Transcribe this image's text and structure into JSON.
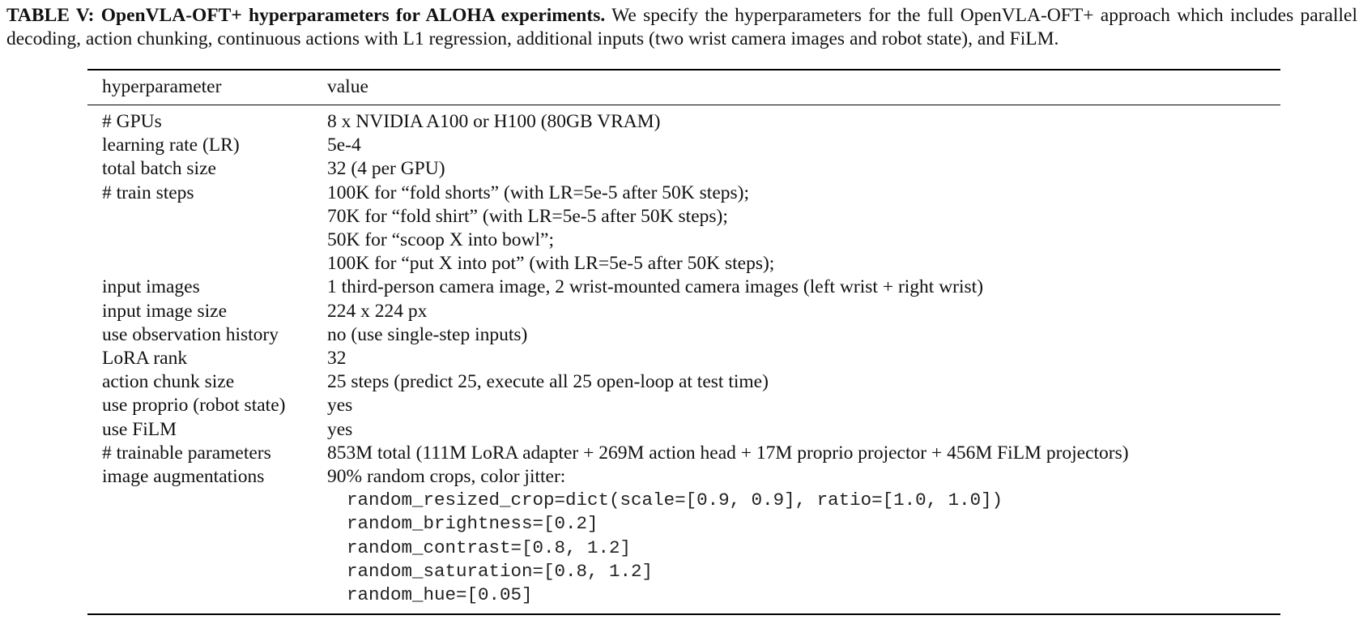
{
  "caption": {
    "label": "TABLE V: OpenVLA-OFT+ hyperparameters for ALOHA experiments.",
    "text": " We specify the hyperparameters for the full OpenVLA-OFT+ approach which includes parallel decoding, action chunking, continuous actions with L1 regression, additional inputs (two wrist camera images and robot state), and FiLM."
  },
  "table": {
    "headers": {
      "param": "hyperparameter",
      "value": "value"
    },
    "rows": [
      {
        "param": "# GPUs",
        "values": [
          "8 x NVIDIA A100 or H100 (80GB VRAM)"
        ]
      },
      {
        "param": "learning rate (LR)",
        "values": [
          "5e-4"
        ]
      },
      {
        "param": "total batch size",
        "values": [
          "32 (4 per GPU)"
        ]
      },
      {
        "param": "# train steps",
        "values": [
          "100K for “fold shorts” (with LR=5e-5 after 50K steps);",
          "70K for “fold shirt” (with LR=5e-5 after 50K steps);",
          "50K for “scoop X into bowl”;",
          "100K for “put X into pot” (with LR=5e-5 after 50K steps);"
        ]
      },
      {
        "param": "input images",
        "values": [
          "1 third-person camera image, 2 wrist-mounted camera images (left wrist + right wrist)"
        ]
      },
      {
        "param": "input image size",
        "values": [
          "224 x 224 px"
        ]
      },
      {
        "param": "use observation history",
        "values": [
          "no (use single-step inputs)"
        ]
      },
      {
        "param": "LoRA rank",
        "values": [
          "32"
        ]
      },
      {
        "param": "action chunk size",
        "values": [
          "25 steps (predict 25, execute all 25 open-loop at test time)"
        ]
      },
      {
        "param": "use proprio (robot state)",
        "values": [
          "yes"
        ]
      },
      {
        "param": "use FiLM",
        "values": [
          "yes"
        ]
      },
      {
        "param": "# trainable parameters",
        "values": [
          "853M total (111M LoRA adapter + 269M action head + 17M proprio projector + 456M FiLM projectors)"
        ]
      },
      {
        "param": "image augmentations",
        "values": [
          "90% random crops, color jitter:"
        ],
        "code": [
          "random_resized_crop=dict(scale=[0.9, 0.9], ratio=[1.0, 1.0])",
          "random_brightness=[0.2]",
          "random_contrast=[0.8, 1.2]",
          "random_saturation=[0.8, 1.2]",
          "random_hue=[0.05]"
        ]
      }
    ]
  }
}
